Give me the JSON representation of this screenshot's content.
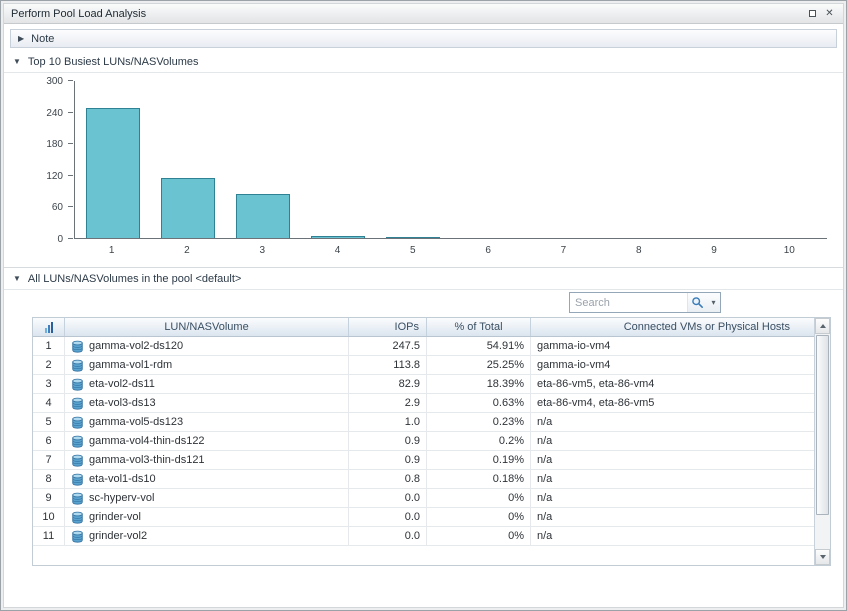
{
  "window": {
    "title": "Perform Pool Load Analysis",
    "close_glyph": "✕"
  },
  "sections": {
    "note": {
      "label": "Note",
      "state_icon": "▶"
    },
    "top10": {
      "label": "Top 10 Busiest LUNs/NASVolumes",
      "state_icon": "▼"
    },
    "pool": {
      "label": "All LUNs/NASVolumes in the pool <default>",
      "state_icon": "▼"
    }
  },
  "search": {
    "placeholder": "Search",
    "dropdown_glyph": "▾"
  },
  "chart_data": {
    "type": "bar",
    "title": "Top 10 Busiest LUNs/NASVolumes",
    "categories": [
      "1",
      "2",
      "3",
      "4",
      "5",
      "6",
      "7",
      "8",
      "9",
      "10"
    ],
    "values": [
      247.5,
      113.8,
      82.9,
      2.9,
      1.0,
      0.9,
      0.9,
      0.8,
      0.0,
      0.0
    ],
    "xlabel": "",
    "ylabel": "",
    "ylim": [
      0,
      300
    ],
    "yticks": [
      0,
      60,
      120,
      180,
      240,
      300
    ],
    "grid": false,
    "legend": false,
    "bar_color": "#6ac3d0",
    "bar_border": "#2e8294"
  },
  "grid": {
    "columns": [
      {
        "key": "num",
        "label": ""
      },
      {
        "key": "name",
        "label": "LUN/NASVolume"
      },
      {
        "key": "iops",
        "label": "IOPs"
      },
      {
        "key": "pct",
        "label": "% of Total"
      },
      {
        "key": "hosts",
        "label": "Connected VMs or Physical Hosts"
      }
    ],
    "rows": [
      {
        "num": "1",
        "name": "gamma-vol2-ds120",
        "iops": "247.5",
        "pct": "54.91%",
        "hosts": "gamma-io-vm4"
      },
      {
        "num": "2",
        "name": "gamma-vol1-rdm",
        "iops": "113.8",
        "pct": "25.25%",
        "hosts": "gamma-io-vm4"
      },
      {
        "num": "3",
        "name": "eta-vol2-ds11",
        "iops": "82.9",
        "pct": "18.39%",
        "hosts": "eta-86-vm5, eta-86-vm4"
      },
      {
        "num": "4",
        "name": "eta-vol3-ds13",
        "iops": "2.9",
        "pct": "0.63%",
        "hosts": "eta-86-vm4, eta-86-vm5"
      },
      {
        "num": "5",
        "name": "gamma-vol5-ds123",
        "iops": "1.0",
        "pct": "0.23%",
        "hosts": "n/a"
      },
      {
        "num": "6",
        "name": "gamma-vol4-thin-ds122",
        "iops": "0.9",
        "pct": "0.2%",
        "hosts": "n/a"
      },
      {
        "num": "7",
        "name": "gamma-vol3-thin-ds121",
        "iops": "0.9",
        "pct": "0.19%",
        "hosts": "n/a"
      },
      {
        "num": "8",
        "name": "eta-vol1-ds10",
        "iops": "0.8",
        "pct": "0.18%",
        "hosts": "n/a"
      },
      {
        "num": "9",
        "name": "sc-hyperv-vol",
        "iops": "0.0",
        "pct": "0%",
        "hosts": "n/a"
      },
      {
        "num": "10",
        "name": "grinder-vol",
        "iops": "0.0",
        "pct": "0%",
        "hosts": "n/a"
      },
      {
        "num": "11",
        "name": "grinder-vol2",
        "iops": "0.0",
        "pct": "0%",
        "hosts": "n/a"
      }
    ]
  }
}
